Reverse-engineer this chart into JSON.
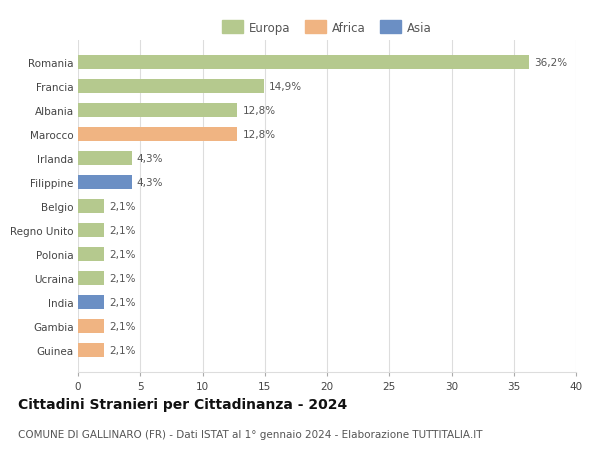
{
  "categories": [
    "Guinea",
    "Gambia",
    "India",
    "Ucraina",
    "Polonia",
    "Regno Unito",
    "Belgio",
    "Filippine",
    "Irlanda",
    "Marocco",
    "Albania",
    "Francia",
    "Romania"
  ],
  "values": [
    2.1,
    2.1,
    2.1,
    2.1,
    2.1,
    2.1,
    2.1,
    4.3,
    4.3,
    12.8,
    12.8,
    14.9,
    36.2
  ],
  "labels": [
    "2,1%",
    "2,1%",
    "2,1%",
    "2,1%",
    "2,1%",
    "2,1%",
    "2,1%",
    "4,3%",
    "4,3%",
    "12,8%",
    "12,8%",
    "14,9%",
    "36,2%"
  ],
  "continents": [
    "Africa",
    "Africa",
    "Asia",
    "Europa",
    "Europa",
    "Europa",
    "Europa",
    "Asia",
    "Europa",
    "Africa",
    "Europa",
    "Europa",
    "Europa"
  ],
  "colors": {
    "Europa": "#b5c98e",
    "Africa": "#f0b482",
    "Asia": "#6b8fc4"
  },
  "xlim": [
    0,
    40
  ],
  "xticks": [
    0,
    5,
    10,
    15,
    20,
    25,
    30,
    35,
    40
  ],
  "title": "Cittadini Stranieri per Cittadinanza - 2024",
  "subtitle": "COMUNE DI GALLINARO (FR) - Dati ISTAT al 1° gennaio 2024 - Elaborazione TUTTITALIA.IT",
  "background_color": "#ffffff",
  "grid_color": "#dddddd",
  "bar_height": 0.55,
  "title_fontsize": 10,
  "subtitle_fontsize": 7.5,
  "label_fontsize": 7.5,
  "tick_fontsize": 7.5,
  "legend_fontsize": 8.5
}
